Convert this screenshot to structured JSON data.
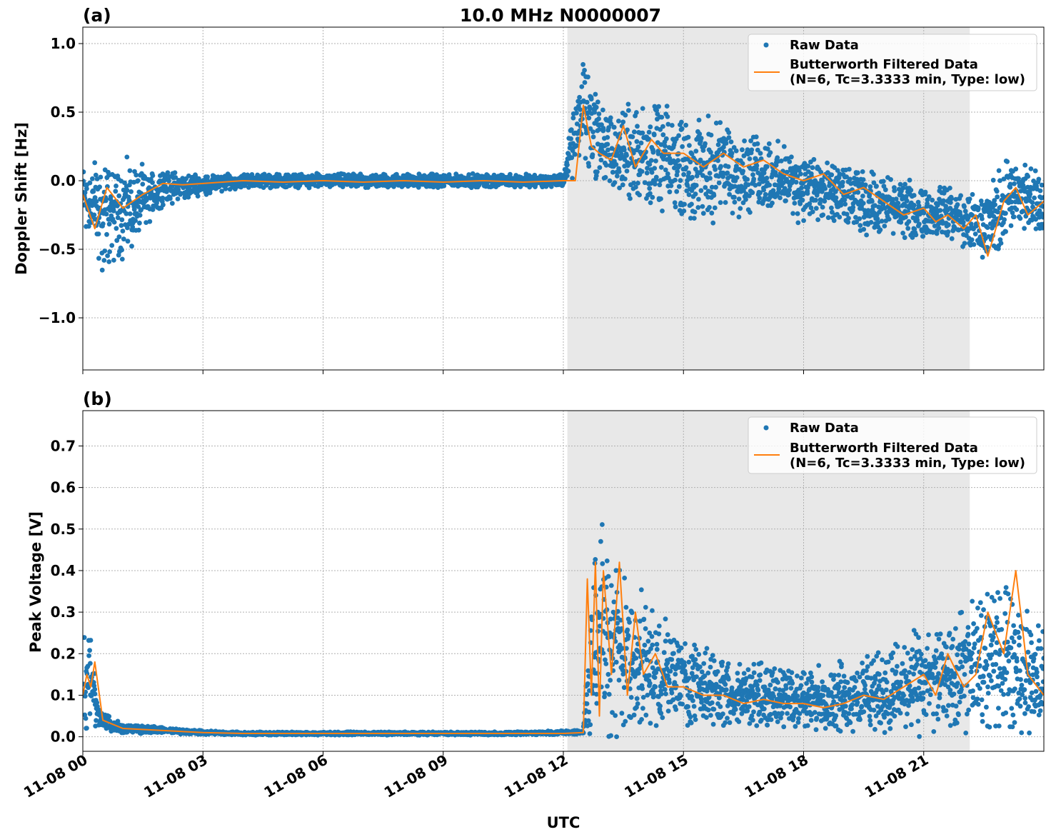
{
  "chart_data": [
    {
      "type": "line",
      "panel": "(a)",
      "title": "10.0 MHz N0000007",
      "xlabel": "",
      "ylabel": "Doppler Shift [Hz]",
      "xlim_hours": [
        0,
        24
      ],
      "ylim": [
        -1.38,
        1.12
      ],
      "yticks": [
        -1.0,
        -0.5,
        0.0,
        0.5,
        1.0
      ],
      "ytick_labels": [
        "−1.0",
        "−0.5",
        "0.0",
        "0.5",
        "1.0"
      ],
      "shaded_region_hours": [
        12.1,
        22.15
      ],
      "grid": true,
      "legend_position": "top-right",
      "series": [
        {
          "name": "Raw Data",
          "style": "scatter",
          "color": "#1f77b4",
          "x": [
            0,
            0.5,
            1,
            1.5,
            2,
            3,
            4,
            5,
            6,
            7,
            8,
            9,
            10,
            11,
            12,
            12.5,
            12.8,
            13.2,
            13.8,
            14.5,
            15,
            15.5,
            16,
            16.5,
            17,
            17.5,
            18,
            18.5,
            19,
            19.5,
            20,
            20.5,
            21,
            21.5,
            22,
            22.5,
            23,
            23.5,
            24
          ],
          "y": [
            -0.1,
            -0.25,
            -0.2,
            -0.15,
            -0.05,
            -0.03,
            0.0,
            0.0,
            0.0,
            0.0,
            0.0,
            0.0,
            0.0,
            0.0,
            0.0,
            0.55,
            0.35,
            0.2,
            0.2,
            0.15,
            0.1,
            0.08,
            0.1,
            0.05,
            0.05,
            0.0,
            -0.05,
            -0.1,
            -0.12,
            -0.15,
            -0.18,
            -0.2,
            -0.25,
            -0.22,
            -0.3,
            -0.35,
            -0.15,
            -0.1,
            -0.2
          ],
          "spread": [
            0.2,
            0.35,
            0.3,
            0.2,
            0.1,
            0.06,
            0.04,
            0.04,
            0.04,
            0.04,
            0.04,
            0.04,
            0.04,
            0.04,
            0.04,
            0.35,
            0.3,
            0.25,
            0.3,
            0.3,
            0.3,
            0.3,
            0.28,
            0.25,
            0.22,
            0.2,
            0.2,
            0.2,
            0.18,
            0.18,
            0.18,
            0.16,
            0.16,
            0.16,
            0.15,
            0.2,
            0.25,
            0.2,
            0.2
          ]
        },
        {
          "name": "Butterworth Filtered Data\n(N=6, Tc=3.3333 min, Type: low)",
          "style": "line",
          "color": "#ff7f0e",
          "x": [
            0,
            0.3,
            0.6,
            1,
            1.5,
            2,
            2.5,
            3,
            4,
            5,
            6,
            7,
            8,
            9,
            10,
            11,
            12,
            12.3,
            12.5,
            12.7,
            12.9,
            13.2,
            13.5,
            13.8,
            14.2,
            14.5,
            15,
            15.5,
            16,
            16.5,
            17,
            17.5,
            18,
            18.5,
            19,
            19.5,
            20,
            20.5,
            21,
            21.3,
            21.6,
            22,
            22.3,
            22.6,
            23,
            23.3,
            23.6,
            24
          ],
          "y": [
            -0.1,
            -0.35,
            -0.05,
            -0.2,
            -0.1,
            -0.02,
            -0.03,
            -0.02,
            0.0,
            -0.01,
            0.0,
            -0.01,
            0.0,
            -0.01,
            0.0,
            -0.01,
            0.0,
            0.0,
            0.55,
            0.25,
            0.2,
            0.15,
            0.4,
            0.1,
            0.3,
            0.2,
            0.2,
            0.1,
            0.2,
            0.1,
            0.15,
            0.05,
            0.0,
            0.05,
            -0.1,
            -0.05,
            -0.15,
            -0.25,
            -0.2,
            -0.3,
            -0.25,
            -0.35,
            -0.25,
            -0.55,
            -0.15,
            -0.05,
            -0.25,
            -0.15
          ]
        }
      ]
    },
    {
      "type": "line",
      "panel": "(b)",
      "xlabel": "UTC",
      "ylabel": "Peak Voltage [V]",
      "xlim_hours": [
        0,
        24
      ],
      "ylim": [
        -0.035,
        0.785
      ],
      "yticks": [
        0.0,
        0.1,
        0.2,
        0.3,
        0.4,
        0.5,
        0.6,
        0.7
      ],
      "ytick_labels": [
        "0.0",
        "0.1",
        "0.2",
        "0.3",
        "0.4",
        "0.5",
        "0.6",
        "0.7"
      ],
      "xticks_hours": [
        0,
        3,
        6,
        9,
        12,
        15,
        18,
        21
      ],
      "xtick_labels": [
        "11-08 00",
        "11-08 03",
        "11-08 06",
        "11-08 09",
        "11-08 12",
        "11-08 15",
        "11-08 18",
        "11-08 21"
      ],
      "shaded_region_hours": [
        12.1,
        22.15
      ],
      "grid": true,
      "legend_position": "top-right",
      "series": [
        {
          "name": "Raw Data",
          "style": "scatter",
          "color": "#1f77b4",
          "x": [
            0,
            0.2,
            0.4,
            1,
            2,
            3,
            4,
            5,
            6,
            7,
            8,
            9,
            10,
            11,
            12,
            12.5,
            12.7,
            13,
            13.3,
            13.6,
            14,
            14.5,
            15,
            15.5,
            16,
            16.5,
            17,
            17.5,
            18,
            18.5,
            19,
            19.5,
            20,
            20.5,
            21,
            21.5,
            22,
            22.5,
            23,
            23.5,
            24
          ],
          "y": [
            0.12,
            0.15,
            0.04,
            0.02,
            0.015,
            0.01,
            0.008,
            0.008,
            0.008,
            0.008,
            0.008,
            0.008,
            0.008,
            0.008,
            0.01,
            0.012,
            0.2,
            0.25,
            0.22,
            0.2,
            0.18,
            0.15,
            0.14,
            0.12,
            0.11,
            0.1,
            0.1,
            0.09,
            0.09,
            0.09,
            0.1,
            0.1,
            0.11,
            0.12,
            0.13,
            0.14,
            0.16,
            0.18,
            0.2,
            0.16,
            0.14
          ],
          "spread": [
            0.1,
            0.1,
            0.02,
            0.01,
            0.006,
            0.004,
            0.003,
            0.003,
            0.003,
            0.003,
            0.003,
            0.003,
            0.003,
            0.003,
            0.004,
            0.005,
            0.2,
            0.22,
            0.2,
            0.15,
            0.12,
            0.1,
            0.09,
            0.08,
            0.07,
            0.06,
            0.06,
            0.06,
            0.06,
            0.06,
            0.07,
            0.07,
            0.08,
            0.09,
            0.1,
            0.1,
            0.12,
            0.14,
            0.14,
            0.12,
            0.11
          ]
        },
        {
          "name": "Butterworth Filtered Data\n(N=6, Tc=3.3333 min, Type: low)",
          "style": "line",
          "color": "#ff7f0e",
          "x": [
            0,
            0.1,
            0.2,
            0.3,
            0.5,
            1,
            2,
            3,
            4,
            5,
            6,
            7,
            8,
            9,
            10,
            11,
            12,
            12.5,
            12.6,
            12.7,
            12.8,
            12.9,
            13.0,
            13.2,
            13.4,
            13.6,
            13.8,
            14.0,
            14.3,
            14.6,
            15,
            15.5,
            16,
            16.5,
            17,
            17.5,
            18,
            18.5,
            19,
            19.5,
            20,
            20.5,
            21,
            21.3,
            21.6,
            22,
            22.3,
            22.6,
            23,
            23.3,
            23.6,
            24
          ],
          "y": [
            0.1,
            0.15,
            0.12,
            0.18,
            0.04,
            0.02,
            0.015,
            0.01,
            0.008,
            0.008,
            0.008,
            0.008,
            0.008,
            0.008,
            0.008,
            0.008,
            0.008,
            0.01,
            0.38,
            0.1,
            0.42,
            0.05,
            0.4,
            0.15,
            0.42,
            0.1,
            0.3,
            0.15,
            0.2,
            0.12,
            0.12,
            0.1,
            0.1,
            0.08,
            0.09,
            0.08,
            0.08,
            0.07,
            0.08,
            0.1,
            0.09,
            0.12,
            0.15,
            0.1,
            0.2,
            0.12,
            0.15,
            0.3,
            0.2,
            0.4,
            0.15,
            0.1
          ]
        }
      ]
    }
  ],
  "legend": {
    "raw_label": "Raw Data",
    "filtered_line1": "Butterworth Filtered Data",
    "filtered_line2": "(N=6, Tc=3.3333 min, Type: low)"
  },
  "colors": {
    "raw": "#1f77b4",
    "filtered": "#ff7f0e",
    "shade": "#e8e8e8",
    "grid": "#b0b0b0"
  }
}
